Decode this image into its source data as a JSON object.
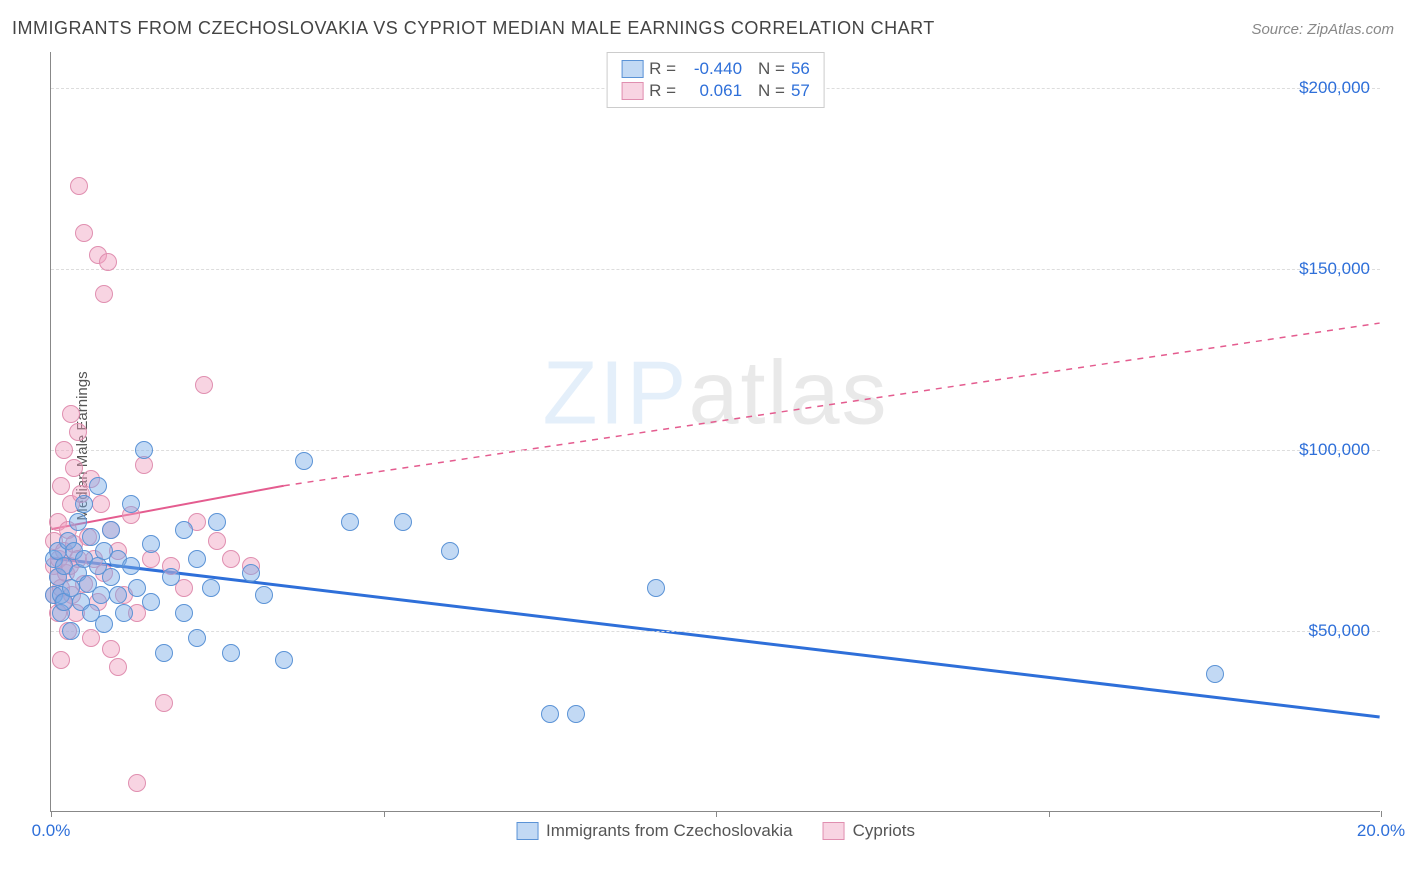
{
  "header": {
    "title": "IMMIGRANTS FROM CZECHOSLOVAKIA VS CYPRIOT MEDIAN MALE EARNINGS CORRELATION CHART",
    "source": "Source: ZipAtlas.com"
  },
  "watermark": {
    "zip": "ZIP",
    "atlas": "atlas"
  },
  "chart": {
    "type": "scatter",
    "ylabel": "Median Male Earnings",
    "xlim": [
      0,
      20
    ],
    "ylim": [
      0,
      210000
    ],
    "xtick_positions": [
      0,
      5,
      10,
      15,
      20
    ],
    "xtick_labels": {
      "0": "0.0%",
      "20": "20.0%"
    },
    "ygrid_positions": [
      50000,
      100000,
      150000,
      200000
    ],
    "ygrid_labels": [
      "$50,000",
      "$100,000",
      "$150,000",
      "$200,000"
    ],
    "background_color": "#ffffff",
    "grid_color": "#dddddd",
    "axis_color": "#888888",
    "label_color": "#2e6fd9",
    "marker_radius": 9,
    "series": [
      {
        "name": "Immigrants from Czechoslovakia",
        "color_fill": "rgba(120,170,230,0.45)",
        "color_stroke": "#5b93d6",
        "line_color": "#2e6fd9",
        "line_width": 3,
        "r_value": "-0.440",
        "n_value": "56",
        "trend": {
          "x1": 0,
          "y1": 70000,
          "x2": 20,
          "y2": 26000
        },
        "points": [
          [
            0.05,
            70000
          ],
          [
            0.05,
            60000
          ],
          [
            0.1,
            65000
          ],
          [
            0.1,
            72000
          ],
          [
            0.15,
            60000
          ],
          [
            0.15,
            55000
          ],
          [
            0.2,
            68000
          ],
          [
            0.2,
            58000
          ],
          [
            0.25,
            75000
          ],
          [
            0.3,
            62000
          ],
          [
            0.3,
            50000
          ],
          [
            0.35,
            72000
          ],
          [
            0.4,
            66000
          ],
          [
            0.4,
            80000
          ],
          [
            0.45,
            58000
          ],
          [
            0.5,
            70000
          ],
          [
            0.5,
            85000
          ],
          [
            0.55,
            63000
          ],
          [
            0.6,
            76000
          ],
          [
            0.6,
            55000
          ],
          [
            0.7,
            68000
          ],
          [
            0.7,
            90000
          ],
          [
            0.75,
            60000
          ],
          [
            0.8,
            72000
          ],
          [
            0.8,
            52000
          ],
          [
            0.9,
            65000
          ],
          [
            0.9,
            78000
          ],
          [
            1.0,
            60000
          ],
          [
            1.0,
            70000
          ],
          [
            1.1,
            55000
          ],
          [
            1.2,
            68000
          ],
          [
            1.2,
            85000
          ],
          [
            1.3,
            62000
          ],
          [
            1.4,
            100000
          ],
          [
            1.5,
            58000
          ],
          [
            1.5,
            74000
          ],
          [
            1.7,
            44000
          ],
          [
            1.8,
            65000
          ],
          [
            2.0,
            78000
          ],
          [
            2.0,
            55000
          ],
          [
            2.2,
            70000
          ],
          [
            2.2,
            48000
          ],
          [
            2.4,
            62000
          ],
          [
            2.5,
            80000
          ],
          [
            2.7,
            44000
          ],
          [
            3.0,
            66000
          ],
          [
            3.2,
            60000
          ],
          [
            3.5,
            42000
          ],
          [
            3.8,
            97000
          ],
          [
            4.5,
            80000
          ],
          [
            5.3,
            80000
          ],
          [
            6.0,
            72000
          ],
          [
            7.5,
            27000
          ],
          [
            7.9,
            27000
          ],
          [
            9.1,
            62000
          ],
          [
            17.5,
            38000
          ]
        ]
      },
      {
        "name": "Cypriots",
        "color_fill": "rgba(240,160,190,0.45)",
        "color_stroke": "#e08fb0",
        "line_color": "#e45c8f",
        "line_width": 2,
        "r_value": "0.061",
        "n_value": "57",
        "trend_solid": {
          "x1": 0,
          "y1": 78000,
          "x2": 3.5,
          "y2": 90000
        },
        "trend_dash": {
          "x1": 3.5,
          "y1": 90000,
          "x2": 20,
          "y2": 135000
        },
        "points": [
          [
            0.05,
            68000
          ],
          [
            0.05,
            60000
          ],
          [
            0.05,
            75000
          ],
          [
            0.1,
            65000
          ],
          [
            0.1,
            55000
          ],
          [
            0.1,
            80000
          ],
          [
            0.12,
            70000
          ],
          [
            0.15,
            62000
          ],
          [
            0.15,
            90000
          ],
          [
            0.18,
            58000
          ],
          [
            0.2,
            72000
          ],
          [
            0.2,
            100000
          ],
          [
            0.22,
            66000
          ],
          [
            0.25,
            78000
          ],
          [
            0.25,
            50000
          ],
          [
            0.28,
            68000
          ],
          [
            0.3,
            85000
          ],
          [
            0.3,
            110000
          ],
          [
            0.32,
            60000
          ],
          [
            0.35,
            74000
          ],
          [
            0.35,
            95000
          ],
          [
            0.38,
            55000
          ],
          [
            0.4,
            70000
          ],
          [
            0.4,
            105000
          ],
          [
            0.42,
            173000
          ],
          [
            0.45,
            88000
          ],
          [
            0.5,
            63000
          ],
          [
            0.5,
            160000
          ],
          [
            0.55,
            76000
          ],
          [
            0.6,
            92000
          ],
          [
            0.6,
            48000
          ],
          [
            0.65,
            70000
          ],
          [
            0.7,
            154000
          ],
          [
            0.7,
            58000
          ],
          [
            0.75,
            85000
          ],
          [
            0.8,
            66000
          ],
          [
            0.8,
            143000
          ],
          [
            0.85,
            152000
          ],
          [
            0.9,
            45000
          ],
          [
            0.9,
            78000
          ],
          [
            1.0,
            40000
          ],
          [
            1.0,
            72000
          ],
          [
            1.1,
            60000
          ],
          [
            1.2,
            82000
          ],
          [
            1.3,
            55000
          ],
          [
            1.4,
            96000
          ],
          [
            1.5,
            70000
          ],
          [
            1.7,
            30000
          ],
          [
            1.8,
            68000
          ],
          [
            2.0,
            62000
          ],
          [
            2.2,
            80000
          ],
          [
            2.3,
            118000
          ],
          [
            2.5,
            75000
          ],
          [
            2.7,
            70000
          ],
          [
            3.0,
            68000
          ],
          [
            1.3,
            8000
          ],
          [
            0.15,
            42000
          ]
        ]
      }
    ]
  }
}
